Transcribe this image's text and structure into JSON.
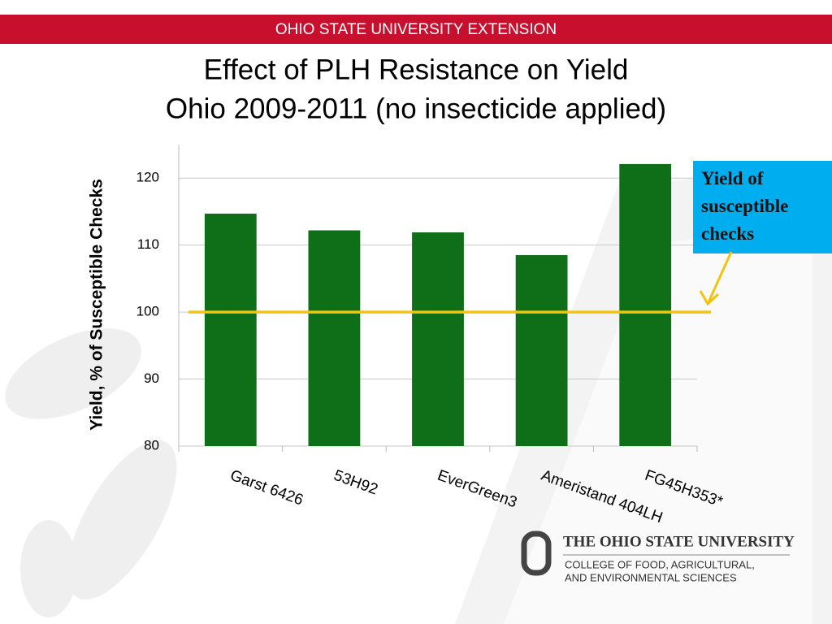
{
  "header": {
    "banner": "OHIO STATE UNIVERSITY EXTENSION"
  },
  "chart_data": {
    "type": "bar",
    "title": "Effect of PLH Resistance on Yield",
    "subtitle": "Ohio 2009-2011 (no insecticide applied)",
    "y_label": "Yield, % of Susceptible Checks",
    "categories": [
      "Garst 6426",
      "53H92",
      "EverGreen3",
      "Ameristand 404LH",
      "FG45H353*"
    ],
    "values": [
      114.7,
      112.2,
      111.9,
      108.5,
      122.1
    ],
    "color": "#0f6e18",
    "ylim": [
      80,
      125
    ],
    "yticks": [
      80,
      90,
      100,
      110,
      120
    ],
    "grid": true,
    "reference_line": {
      "value": 100,
      "color": "#f2c40f"
    },
    "annotation": "Yield of susceptible checks"
  },
  "footer": {
    "university": "THE OHIO STATE UNIVERSITY",
    "college_line1": "COLLEGE OF FOOD, AGRICULTURAL,",
    "college_line2": "AND ENVIRONMENTAL SCIENCES"
  }
}
